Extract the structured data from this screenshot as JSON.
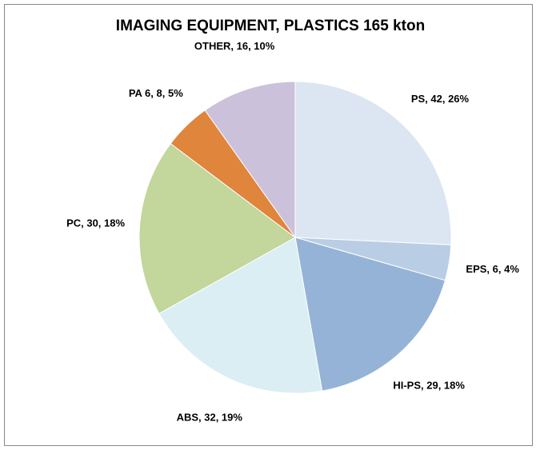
{
  "chart_data": {
    "type": "pie",
    "title": "IMAGING EQUIPMENT, PLASTICS 165 kton",
    "values": [
      42,
      6,
      29,
      32,
      30,
      8,
      16
    ],
    "value_labels": [
      "PS, 42, 26%",
      "EPS, 6, 4%",
      "HI-PS, 29, 18%",
      "ABS, 32, 19%",
      "PC, 30, 18%",
      "PA 6, 8, 5%",
      "OTHER, 16, 10%"
    ],
    "colors": [
      "#dce6f2",
      "#b9cde5",
      "#95b3d7",
      "#dbeef4",
      "#c3d69b",
      "#e0853c",
      "#ccc1da"
    ]
  }
}
